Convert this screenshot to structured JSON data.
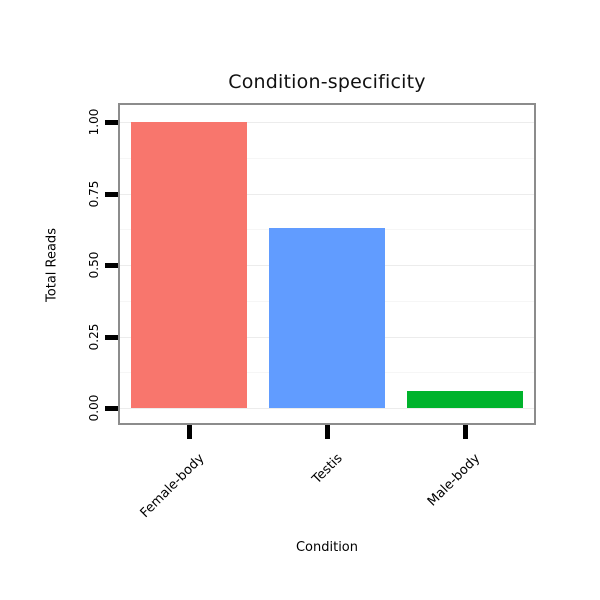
{
  "chart_data": {
    "type": "bar",
    "title": "Condition-specificity",
    "xlabel": "Condition",
    "ylabel": "Total Reads",
    "categories": [
      "Female-body",
      "Testis",
      "Male-body"
    ],
    "values": [
      1.0,
      0.63,
      0.06
    ],
    "colors": [
      "#F8766D",
      "#619CFF",
      "#00B32C"
    ],
    "yticks": [
      "0.00",
      "0.25",
      "0.50",
      "0.75",
      "1.00"
    ],
    "ylim": [
      0,
      1.07
    ],
    "grid": "horizontal major + minor, light gray",
    "legend": "none",
    "panel_border_color": "#8c8c8c",
    "tick_color": "#000000"
  }
}
